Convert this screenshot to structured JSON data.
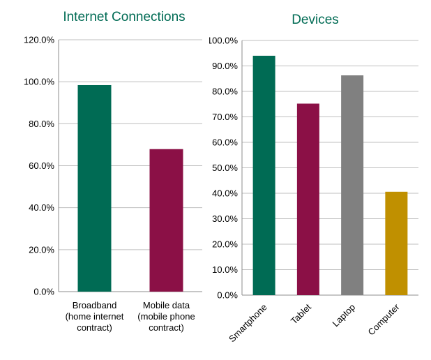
{
  "chart_data": [
    {
      "type": "bar",
      "title": "Internet Connections",
      "categories": [
        [
          "Broadband",
          "(home internet",
          "contract)"
        ],
        [
          "Mobile data",
          "(mobile phone",
          "contract)"
        ]
      ],
      "values": [
        98.4,
        67.9
      ],
      "colors": [
        "#006b54",
        "#8b1046"
      ],
      "ylim": [
        0,
        120
      ],
      "yticks": [
        "0.0%",
        "20.0%",
        "40.0%",
        "60.0%",
        "80.0%",
        "100.0%",
        "120.0%"
      ],
      "grid": true,
      "title_color": "#006b54"
    },
    {
      "type": "bar",
      "title": "Devices",
      "categories": [
        "Smartphone",
        "Tablet",
        "Laptop",
        "Computer"
      ],
      "values": [
        94.0,
        75.2,
        86.3,
        40.6
      ],
      "colors": [
        "#006b54",
        "#8b1046",
        "#808080",
        "#c09000"
      ],
      "ylim": [
        0,
        100
      ],
      "yticks": [
        "0.0%",
        "10.0%",
        "20.0%",
        "30.0%",
        "40.0%",
        "50.0%",
        "60.0%",
        "70.0%",
        "80.0%",
        "90.0%",
        "100.0%"
      ],
      "grid": true,
      "title_color": "#006b54"
    }
  ]
}
